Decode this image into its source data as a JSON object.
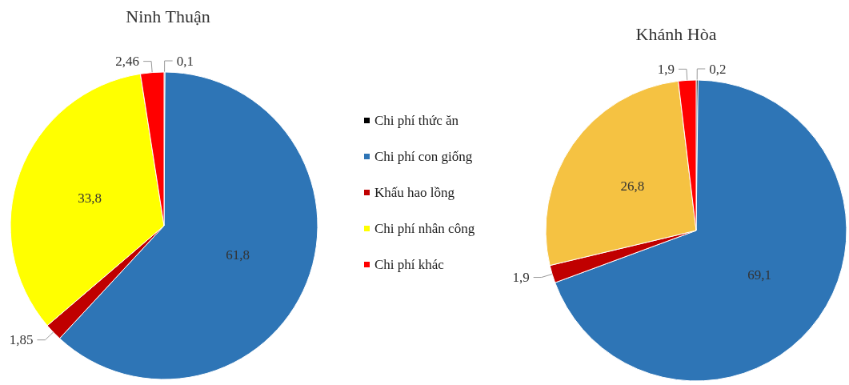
{
  "chart_data": [
    {
      "type": "pie",
      "title": "Ninh Thuận",
      "categories": [
        "Chi phí thức ăn",
        "Chi phí con giống",
        "Khấu hao lồng",
        "Chi phí nhân công",
        "Chi phí khác"
      ],
      "values": [
        0.1,
        61.8,
        1.85,
        33.8,
        2.46
      ],
      "value_labels": [
        "0,1",
        "61,8",
        "1,85",
        "33,8",
        "2,46"
      ],
      "colors": [
        "#000000",
        "#2e75b6",
        "#c00000",
        "#ffff00",
        "#ff0000"
      ],
      "legend": "right"
    },
    {
      "type": "pie",
      "title": "Khánh Hòa",
      "categories": [
        null,
        null,
        null,
        null,
        null
      ],
      "values": [
        0.2,
        69.1,
        1.9,
        26.8,
        1.9
      ],
      "value_labels": [
        "0,2",
        "69,1",
        "1,9",
        "26,8",
        "1,9"
      ],
      "colors": [
        "#000000",
        "#2e75b6",
        "#c00000",
        "#f5c242",
        "#ff0000"
      ]
    }
  ]
}
